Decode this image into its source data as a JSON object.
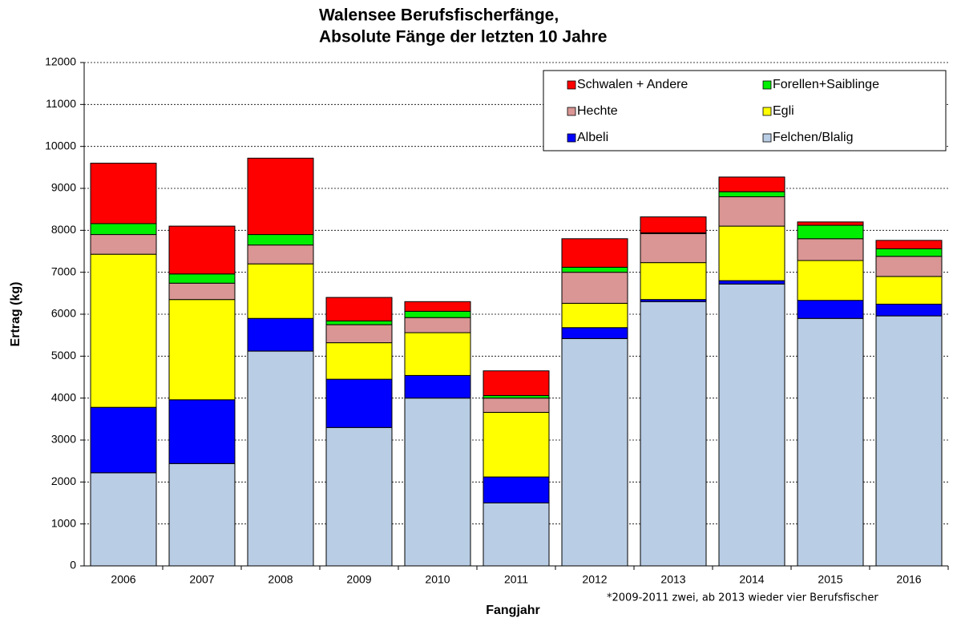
{
  "chart_data": {
    "type": "stacked-bar",
    "title": "Walensee Berufsfischerfänge,",
    "subtitle": "Absolute Fänge der letzten 10 Jahre",
    "x_label": "Fangjahr",
    "y_label": "Ertrag (kg)",
    "annotation": "*2009-2011 zwei, ab 2013 wieder vier Berufsfischer",
    "categories": [
      "2006",
      "2007",
      "2008",
      "2009",
      "2010",
      "2011",
      "2012",
      "2013",
      "2014",
      "2015",
      "2016"
    ],
    "series": [
      {
        "name": "Felchen/Blalig",
        "color": "#b9cde5",
        "values": [
          2220,
          2440,
          5120,
          3300,
          4000,
          1500,
          5420,
          6300,
          6720,
          5900,
          5960
        ]
      },
      {
        "name": "Albeli",
        "color": "#0000ff",
        "values": [
          1560,
          1520,
          780,
          1150,
          540,
          620,
          260,
          50,
          80,
          430,
          280
        ]
      },
      {
        "name": "Egli",
        "color": "#ffff00",
        "values": [
          3650,
          2390,
          1300,
          870,
          1020,
          1540,
          580,
          880,
          1300,
          950,
          660
        ]
      },
      {
        "name": "Hechte",
        "color": "#d99694",
        "values": [
          470,
          390,
          450,
          430,
          360,
          340,
          740,
          690,
          700,
          520,
          480
        ]
      },
      {
        "name": "Forellen+Saiblinge",
        "color": "#00ee00",
        "values": [
          260,
          220,
          250,
          90,
          150,
          60,
          120,
          20,
          120,
          320,
          180
        ]
      },
      {
        "name": "Schwalen + Andere",
        "color": "#ff0000",
        "values": [
          1440,
          1140,
          1820,
          560,
          230,
          590,
          680,
          380,
          350,
          80,
          200
        ]
      }
    ],
    "ylim": [
      0,
      12000
    ],
    "yticks": [
      0,
      1000,
      2000,
      3000,
      4000,
      5000,
      6000,
      7000,
      8000,
      9000,
      10000,
      11000,
      12000
    ],
    "grid": true,
    "legend": "top-right"
  }
}
